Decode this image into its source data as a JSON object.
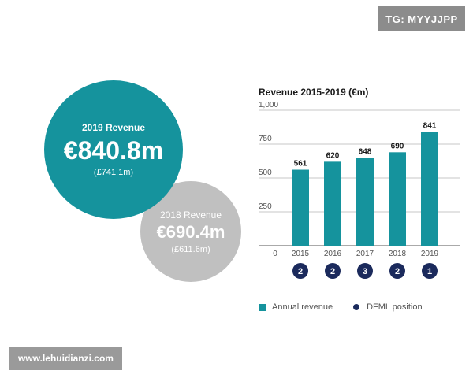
{
  "tag": "TG: MYYJJPP",
  "watermark": "www.lehuidianzi.com",
  "circles": {
    "y2019": {
      "label": "2019 Revenue",
      "value": "€840.8m",
      "sub": "(£741.1m)"
    },
    "y2018": {
      "label": "2018 Revenue",
      "value": "€690.4m",
      "sub": "(£611.6m)"
    }
  },
  "legend": {
    "bar": "Annual revenue",
    "dot": "DFML position"
  },
  "colors": {
    "bar": "#15939d",
    "dot": "#1b2a5c",
    "circle2018": "#c0c0c0"
  },
  "chart_data": {
    "type": "bar",
    "title": "Revenue 2015-2019 (€m)",
    "categories": [
      "2015",
      "2016",
      "2017",
      "2018",
      "2019"
    ],
    "values": [
      561,
      620,
      648,
      690,
      841
    ],
    "data_labels": [
      "561",
      "620",
      "648",
      "690",
      "841"
    ],
    "yticks": [
      0,
      250,
      500,
      750,
      1000
    ],
    "ytick_labels": [
      "0",
      "250",
      "500",
      "750",
      "1,000"
    ],
    "ylim": [
      0,
      1000
    ],
    "positions": [
      "2",
      "2",
      "3",
      "2",
      "1"
    ],
    "xlabel": "",
    "ylabel": ""
  }
}
